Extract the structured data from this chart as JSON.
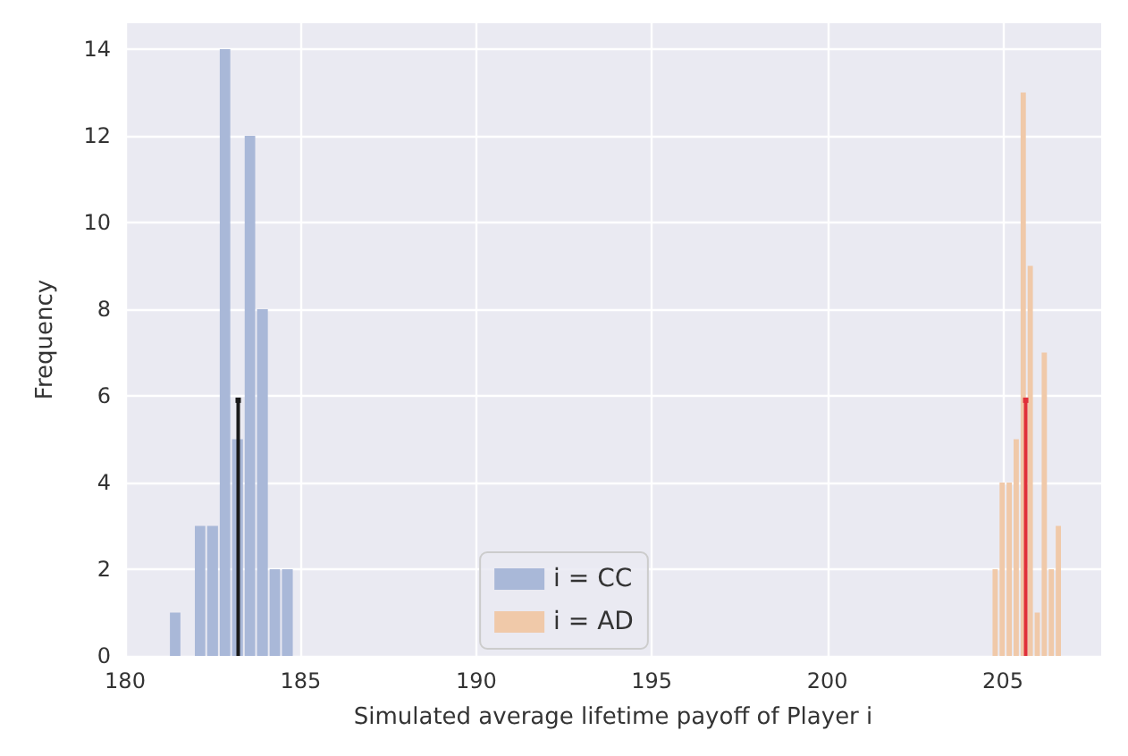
{
  "chart_data": {
    "type": "histogram",
    "xlabel": "Simulated average lifetime payoff of Player i",
    "ylabel": "Frequency",
    "xlim": [
      180,
      207.8
    ],
    "xticks": [
      180,
      185,
      190,
      195,
      200,
      205
    ],
    "ylim": [
      0,
      14.6
    ],
    "yticks": [
      0,
      2,
      4,
      6,
      8,
      10,
      12,
      14
    ],
    "grid": true,
    "legend": "bottom",
    "series": [
      {
        "name": "i = CC",
        "color": "#a9b8d8",
        "bins": [
          181.25,
          181.6,
          181.96,
          182.31,
          182.67,
          183.02,
          183.38,
          183.73,
          184.09,
          184.44,
          184.8
        ],
        "values": [
          1,
          0,
          3,
          3,
          14,
          5,
          12,
          8,
          2,
          2
        ]
      },
      {
        "name": "i = AD",
        "color": "#f0c9a9",
        "bins": [
          204.68,
          204.88,
          205.08,
          205.28,
          205.48,
          205.68,
          205.88,
          206.08,
          206.28,
          206.48,
          206.68
        ],
        "values": [
          2,
          4,
          4,
          5,
          13,
          9,
          1,
          7,
          2,
          3
        ]
      },
      {
        "type": "lollipop",
        "color": "#1a1a1a",
        "x": [
          183.22
        ],
        "values": [
          5.9
        ]
      },
      {
        "type": "lollipop",
        "color": "#e0303a",
        "x": [
          205.65
        ],
        "values": [
          5.9
        ]
      }
    ]
  }
}
